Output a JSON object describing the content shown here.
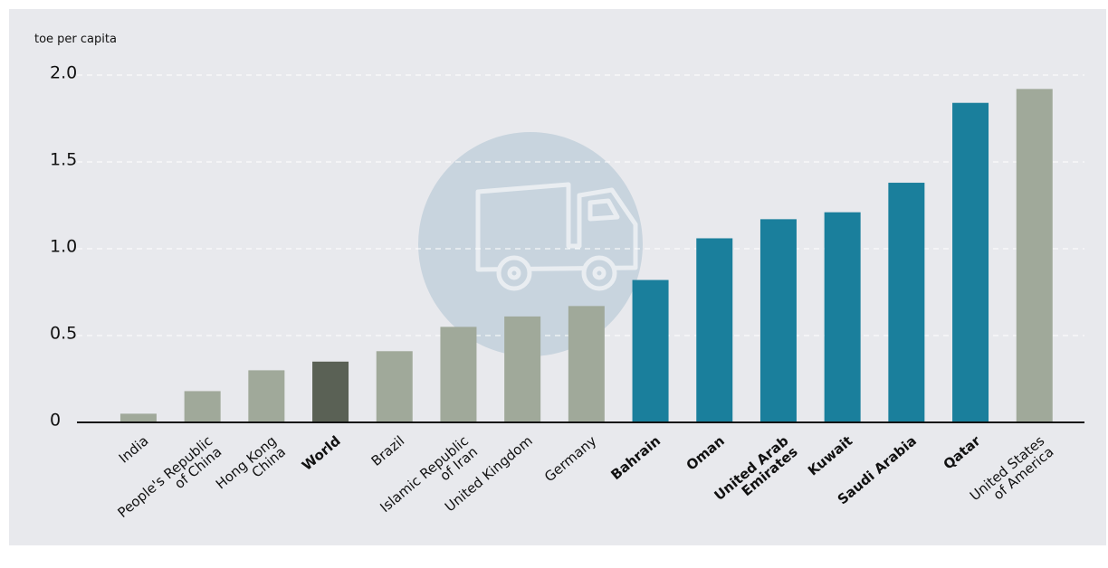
{
  "chart_data": {
    "type": "bar",
    "y_label": "toe per capita",
    "categories": [
      "India",
      "People's Republic\nof China",
      "Hong Kong\nChina",
      "World",
      "Brazil",
      "Islamic Republic\nof Iran",
      "United Kingdom",
      "Germany",
      "Bahrain",
      "Oman",
      "United Arab\nEmirates",
      "Kuwait",
      "Saudi Arabia",
      "Qatar",
      "United States\nof America"
    ],
    "values": [
      0.05,
      0.18,
      0.3,
      0.35,
      0.41,
      0.55,
      0.61,
      0.67,
      0.82,
      1.06,
      1.17,
      1.21,
      1.38,
      1.84,
      1.92
    ],
    "colors": [
      "#a0a99a",
      "#a0a99a",
      "#a0a99a",
      "#5a6155",
      "#a0a99a",
      "#a0a99a",
      "#a0a99a",
      "#a0a99a",
      "#1a7f9c",
      "#1a7f9c",
      "#1a7f9c",
      "#1a7f9c",
      "#1a7f9c",
      "#1a7f9c",
      "#a0a99a"
    ],
    "bold": [
      false,
      false,
      false,
      true,
      false,
      false,
      false,
      false,
      true,
      true,
      true,
      true,
      true,
      true,
      false
    ],
    "ylim": [
      0,
      2
    ],
    "yticks": [
      0,
      0.5,
      {
        "value": 1,
        "label": "1.0"
      },
      1.5,
      {
        "value": 2,
        "label": "2.0"
      }
    ],
    "grid": true
  }
}
